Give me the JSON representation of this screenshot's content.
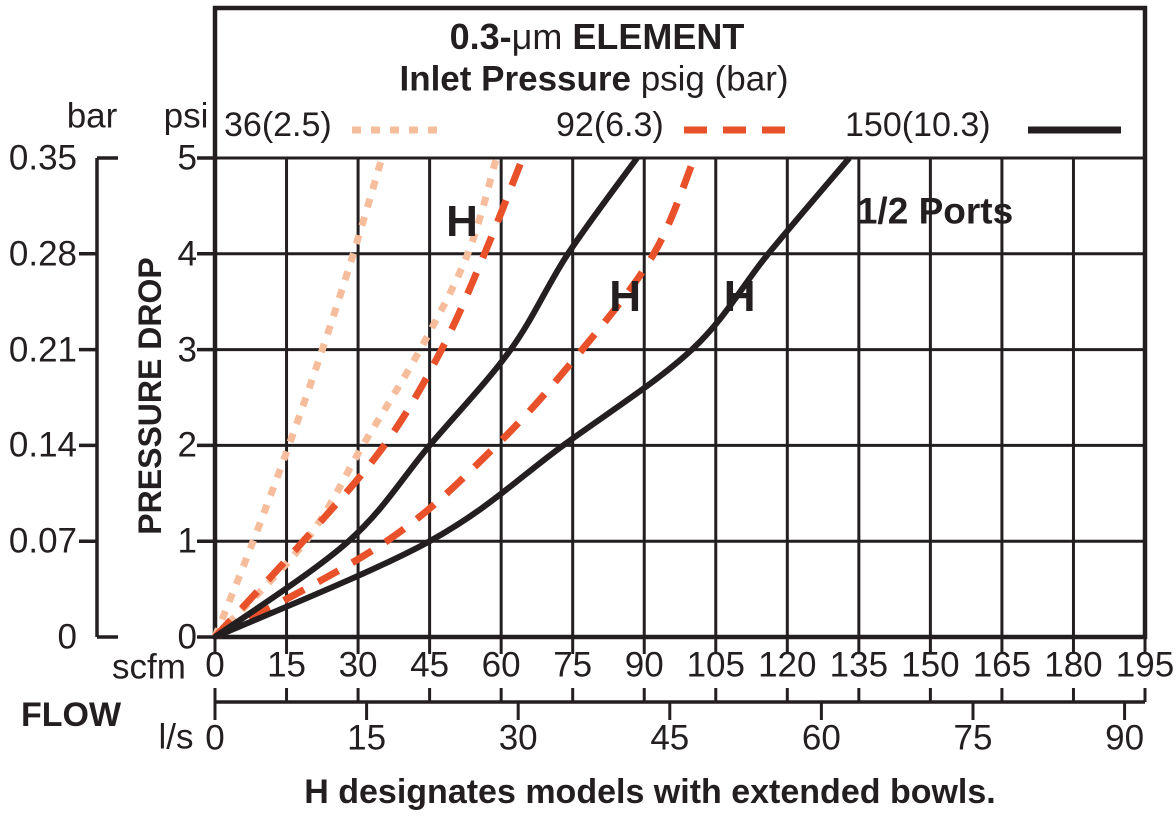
{
  "header": {
    "title_bold_prefix": "0.3-",
    "title_mu": "μm",
    "title_bold_suffix": " ELEMENT",
    "subtitle_bold": "Inlet Pressure",
    "subtitle_rest": " psig (bar)"
  },
  "legend": {
    "items": [
      {
        "label": "36(2.5)",
        "style": "dotted",
        "color": "#f6bd9c"
      },
      {
        "label": "92(6.3)",
        "style": "dashed",
        "color": "#e8512a"
      },
      {
        "label": "150(10.3)",
        "style": "solid",
        "color": "#231f20"
      }
    ]
  },
  "axis_labels": {
    "bar": "bar",
    "psi": "psi",
    "scfm": "scfm",
    "ls": "l/s",
    "flow": "FLOW",
    "pressure_drop": "PRESSURE DROP"
  },
  "annotations": {
    "ports": "1/2 Ports",
    "caption": "H designates models with extended bowls."
  },
  "chart_data": {
    "type": "line",
    "title": "0.3-μm ELEMENT",
    "subtitle": "Inlet Pressure psig (bar)",
    "xlabel": "FLOW",
    "ylabel": "PRESSURE DROP",
    "grid": true,
    "legend_position": "top",
    "x_axis": {
      "unit": "scfm",
      "range": [
        0,
        195
      ],
      "ticks": [
        0,
        15,
        30,
        45,
        60,
        75,
        90,
        105,
        120,
        135,
        150,
        165,
        180,
        195
      ]
    },
    "x_axis_secondary": {
      "unit": "l/s",
      "range": [
        0,
        92
      ],
      "ticks": [
        0,
        15,
        30,
        45,
        60,
        75,
        90
      ]
    },
    "y_axis": {
      "unit": "psi",
      "range": [
        0,
        5
      ],
      "ticks": [
        0,
        1,
        2,
        3,
        4,
        5
      ]
    },
    "y_axis_secondary": {
      "unit": "bar",
      "range": [
        0,
        0.35
      ],
      "ticks": [
        "0",
        "0.07",
        "0.14",
        "0.21",
        "0.28",
        "0.35"
      ]
    },
    "series": [
      {
        "name": "36(2.5)",
        "variant": "standard",
        "color": "#f6bd9c",
        "dash": "9 10",
        "width": 7,
        "points_scfm_psi": [
          [
            0,
            0
          ],
          [
            8,
            1
          ],
          [
            15.5,
            2
          ],
          [
            22.5,
            3
          ],
          [
            29,
            4
          ],
          [
            35,
            5
          ]
        ]
      },
      {
        "name": "36(2.5)",
        "variant": "H extended bowl",
        "color": "#f6bd9c",
        "dash": "9 10",
        "width": 7,
        "points_scfm_psi": [
          [
            0,
            0
          ],
          [
            19,
            1
          ],
          [
            31,
            2
          ],
          [
            43,
            3
          ],
          [
            53,
            4
          ],
          [
            59,
            5
          ]
        ]
      },
      {
        "name": "92(6.3)",
        "variant": "standard",
        "color": "#e8512a",
        "dash": "23 16",
        "width": 7,
        "points_scfm_psi": [
          [
            0,
            0
          ],
          [
            18.5,
            1
          ],
          [
            35.5,
            2
          ],
          [
            47.5,
            3
          ],
          [
            56.5,
            4
          ],
          [
            64.5,
            5
          ]
        ]
      },
      {
        "name": "92(6.3)",
        "variant": "H extended bowl",
        "color": "#e8512a",
        "dash": "23 16",
        "width": 7,
        "points_scfm_psi": [
          [
            0,
            0
          ],
          [
            36,
            1
          ],
          [
            59,
            2
          ],
          [
            77,
            3
          ],
          [
            92,
            4
          ],
          [
            100.5,
            5
          ]
        ]
      },
      {
        "name": "150(10.3)",
        "variant": "standard",
        "color": "#231f20",
        "dash": null,
        "width": 6,
        "points_scfm_psi": [
          [
            0,
            0
          ],
          [
            28,
            1
          ],
          [
            45,
            2
          ],
          [
            62,
            3
          ],
          [
            74,
            4
          ],
          [
            88.5,
            5
          ]
        ]
      },
      {
        "name": "150(10.3)",
        "variant": "H extended bowl",
        "color": "#231f20",
        "dash": null,
        "width": 6,
        "points_scfm_psi": [
          [
            0,
            0
          ],
          [
            45,
            1
          ],
          [
            73,
            2
          ],
          [
            100,
            3
          ],
          [
            116,
            4
          ],
          [
            133,
            5
          ]
        ]
      }
    ],
    "h_markers": [
      {
        "text": "H",
        "scfm": 51.8,
        "psi": 4.33
      },
      {
        "text": "H",
        "scfm": 86.0,
        "psi": 3.55
      },
      {
        "text": "H",
        "scfm": 110.0,
        "psi": 3.55
      }
    ]
  }
}
